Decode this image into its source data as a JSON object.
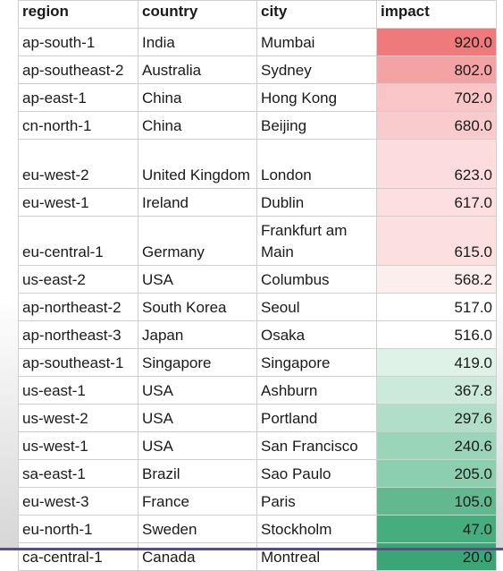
{
  "table": {
    "columns": [
      "region",
      "country",
      "city",
      "impact"
    ],
    "rows": [
      {
        "region": "ap-south-1",
        "country": "India",
        "city": "Mumbai",
        "impact": "920.0",
        "color": "#ee7a7c"
      },
      {
        "region": "ap-southeast-2",
        "country": "Australia",
        "city": "Sydney",
        "impact": "802.0",
        "color": "#f4a3a4"
      },
      {
        "region": "ap-east-1",
        "country": "China",
        "city": "Hong Kong",
        "impact": "702.0",
        "color": "#f9c5c6"
      },
      {
        "region": "cn-north-1",
        "country": "China",
        "city": "Beijing",
        "impact": "680.0",
        "color": "#f9cbcc"
      },
      {
        "region": "eu-west-2",
        "country": "United Kingdom",
        "city": "London",
        "impact": "623.0",
        "color": "#fcdcdc"
      },
      {
        "region": "eu-west-1",
        "country": "Ireland",
        "city": "Dublin",
        "impact": "617.0",
        "color": "#fcdede"
      },
      {
        "region": "eu-central-1",
        "country": "Germany",
        "city": "Frankfurt am Main",
        "impact": "615.0",
        "color": "#fcdfdf"
      },
      {
        "region": "us-east-2",
        "country": "USA",
        "city": "Columbus",
        "impact": "568.2",
        "color": "#fdeeee"
      },
      {
        "region": "ap-northeast-2",
        "country": "South Korea",
        "city": "Seoul",
        "impact": "517.0",
        "color": "#ffffff"
      },
      {
        "region": "ap-northeast-3",
        "country": "Japan",
        "city": "Osaka",
        "impact": "516.0",
        "color": "#ffffff"
      },
      {
        "region": "ap-southeast-1",
        "country": "Singapore",
        "city": "Singapore",
        "impact": "419.0",
        "color": "#dff2e8"
      },
      {
        "region": "us-east-1",
        "country": "USA",
        "city": "Ashburn",
        "impact": "367.8",
        "color": "#cbeadb"
      },
      {
        "region": "us-west-2",
        "country": "USA",
        "city": "Portland",
        "impact": "297.6",
        "color": "#b0dec8"
      },
      {
        "region": "us-west-1",
        "country": "USA",
        "city": "San Francisco",
        "impact": "240.6",
        "color": "#9bd5b9"
      },
      {
        "region": "sa-east-1",
        "country": "Brazil",
        "city": "Sao Paulo",
        "impact": "205.0",
        "color": "#8ccfae"
      },
      {
        "region": "eu-west-3",
        "country": "France",
        "city": "Paris",
        "impact": "105.0",
        "color": "#62b98f"
      },
      {
        "region": "eu-north-1",
        "country": "Sweden",
        "city": "Stockholm",
        "impact": "47.0",
        "color": "#46ad7e"
      },
      {
        "region": "ca-central-1",
        "country": "Canada",
        "city": "Montreal",
        "impact": "20.0",
        "color": "#3aa675"
      }
    ]
  }
}
